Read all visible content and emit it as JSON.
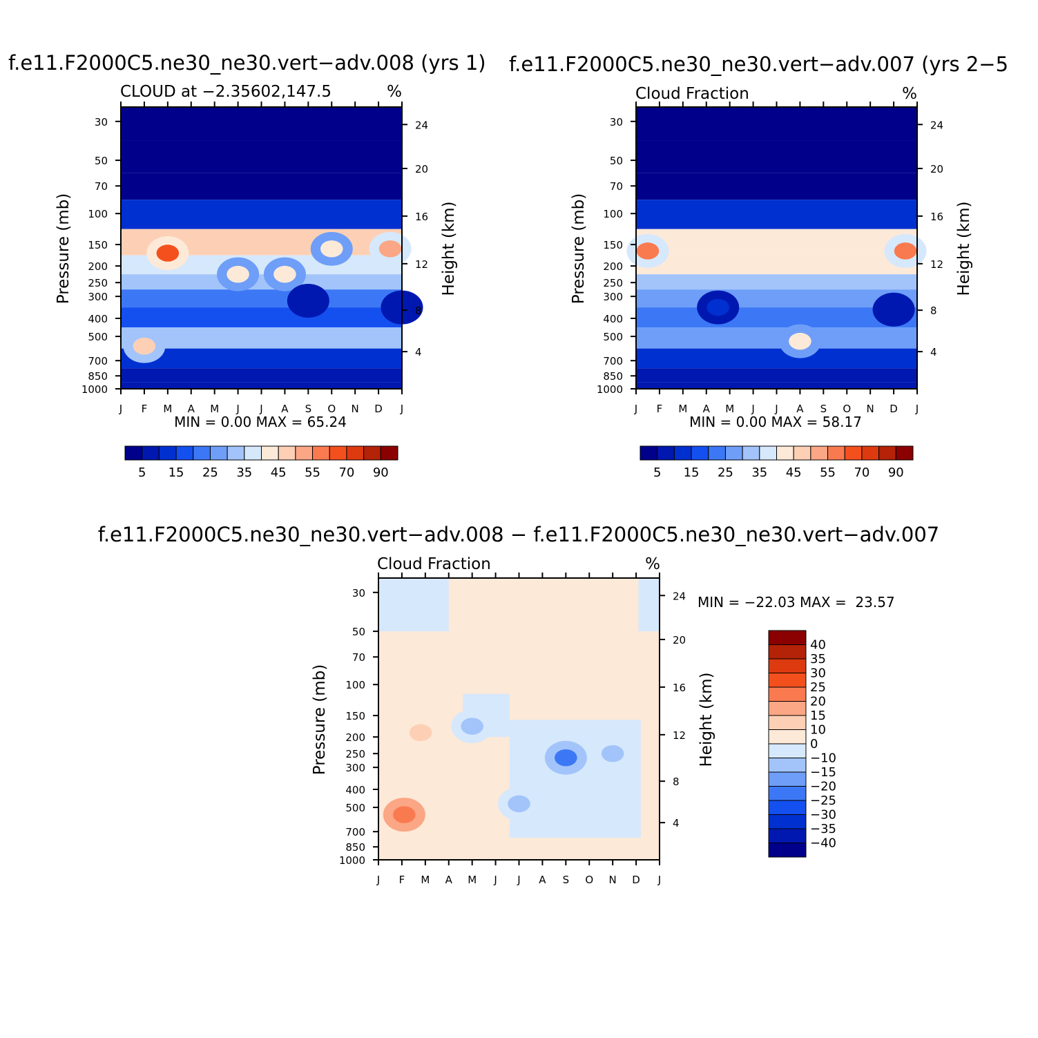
{
  "chart_data": [
    {
      "type": "heatmap",
      "panel": "top-left",
      "title": "f.e11.F2000C5.ne30_ne30.vert−adv.008 (yrs 1)",
      "subtitle_left": "CLOUD at −2.35602,147.5",
      "subtitle_right": "%",
      "xlabel": "",
      "ylabel": "Pressure (mb)",
      "ylabel_right": "Height (km)",
      "months": [
        "J",
        "F",
        "M",
        "A",
        "M",
        "J",
        "J",
        "A",
        "S",
        "O",
        "N",
        "D",
        "J"
      ],
      "pressure_ticks": [
        "30",
        "50",
        "70",
        "100",
        "150",
        "200",
        "250",
        "300",
        "400",
        "500",
        "700",
        "850",
        "1000"
      ],
      "height_ticks": [
        "24",
        "20",
        "16",
        "12",
        "8",
        "4"
      ],
      "stats": "MIN = 0.00 MAX = 65.24",
      "min": 0.0,
      "max": 65.24,
      "colorbar_labels": [
        "5",
        "15",
        "25",
        "35",
        "45",
        "55",
        "70",
        "90"
      ],
      "colors": [
        "#00008b",
        "#0018b0",
        "#0030d0",
        "#1450f0",
        "#3c78f5",
        "#6e9ef8",
        "#a2c4fa",
        "#d6e8fc",
        "#fde9d8",
        "#fdd0b5",
        "#fba684",
        "#fa7a50",
        "#f4501e",
        "#dd3a10",
        "#b42208",
        "#8b0000"
      ],
      "profile_rows": [
        0,
        0,
        0,
        10,
        45,
        38,
        30,
        22,
        18,
        30,
        12,
        8,
        6
      ],
      "features": [
        {
          "month": 2,
          "level": 4.4,
          "value": 62
        },
        {
          "month": 11.5,
          "level": 4.2,
          "value": 50
        },
        {
          "month": 1,
          "level": 9.4,
          "value": 48
        },
        {
          "month": 5,
          "level": 5.5,
          "value": 42
        },
        {
          "month": 7,
          "level": 5.5,
          "value": 42
        },
        {
          "month": 9,
          "level": 4.2,
          "value": 42
        },
        {
          "month": 8,
          "level": 7.2,
          "value": 8
        },
        {
          "month": 12,
          "level": 7.5,
          "value": 8
        }
      ]
    },
    {
      "type": "heatmap",
      "panel": "top-right",
      "title": "f.e11.F2000C5.ne30_ne30.vert−adv.007 (yrs 2−5",
      "subtitle_left": "Cloud Fraction",
      "subtitle_right": "%",
      "xlabel": "",
      "ylabel": "Pressure (mb)",
      "ylabel_right": "Height (km)",
      "months": [
        "J",
        "F",
        "M",
        "A",
        "M",
        "J",
        "J",
        "A",
        "S",
        "O",
        "N",
        "D",
        "J"
      ],
      "pressure_ticks": [
        "30",
        "50",
        "70",
        "100",
        "150",
        "200",
        "250",
        "300",
        "400",
        "500",
        "700",
        "850",
        "1000"
      ],
      "height_ticks": [
        "24",
        "20",
        "16",
        "12",
        "8",
        "4"
      ],
      "stats": "MIN = 0.00 MAX = 58.17",
      "min": 0.0,
      "max": 58.17,
      "colorbar_labels": [
        "5",
        "15",
        "25",
        "35",
        "45",
        "55",
        "70",
        "90"
      ],
      "colors": [
        "#00008b",
        "#0018b0",
        "#0030d0",
        "#1450f0",
        "#3c78f5",
        "#6e9ef8",
        "#a2c4fa",
        "#d6e8fc",
        "#fde9d8",
        "#fdd0b5",
        "#fba684",
        "#fa7a50",
        "#f4501e",
        "#dd3a10",
        "#b42208",
        "#8b0000"
      ],
      "profile_rows": [
        0,
        0,
        0,
        12,
        42,
        40,
        32,
        25,
        20,
        28,
        14,
        8,
        6
      ],
      "features": [
        {
          "month": 0.5,
          "level": 4.3,
          "value": 56
        },
        {
          "month": 11.5,
          "level": 4.3,
          "value": 55
        },
        {
          "month": 3.5,
          "level": 7.5,
          "value": 10
        },
        {
          "month": 11,
          "level": 7.6,
          "value": 8
        },
        {
          "month": 7,
          "level": 9.2,
          "value": 40
        }
      ]
    },
    {
      "type": "heatmap",
      "panel": "bottom-difference",
      "title": "f.e11.F2000C5.ne30_ne30.vert−adv.008 − f.e11.F2000C5.ne30_ne30.vert−adv.007",
      "subtitle_left": "Cloud Fraction",
      "subtitle_right": "%",
      "xlabel": "",
      "ylabel": "Pressure (mb)",
      "ylabel_right": "Height (km)",
      "months": [
        "J",
        "F",
        "M",
        "A",
        "M",
        "J",
        "J",
        "A",
        "S",
        "O",
        "N",
        "D",
        "J"
      ],
      "pressure_ticks": [
        "30",
        "50",
        "70",
        "100",
        "150",
        "200",
        "250",
        "300",
        "400",
        "500",
        "700",
        "850",
        "1000"
      ],
      "height_ticks": [
        "24",
        "20",
        "16",
        "12",
        "8",
        "4"
      ],
      "stats": "MIN = −22.03 MAX =  23.57",
      "min": -22.03,
      "max": 23.57,
      "colorbar_labels": [
        "40",
        "35",
        "30",
        "25",
        "20",
        "15",
        "10",
        "0",
        "−10",
        "−15",
        "−20",
        "−25",
        "−30",
        "−35",
        "−40"
      ],
      "colors": [
        "#8b0000",
        "#b42208",
        "#dd3a10",
        "#f4501e",
        "#fa7a50",
        "#fba684",
        "#fdd0b5",
        "#fde9d8",
        "#d6e8fc",
        "#a2c4fa",
        "#6e9ef8",
        "#3c78f5",
        "#1450f0",
        "#0030d0",
        "#0018b0",
        "#00008b"
      ],
      "features": [
        {
          "month": 1.1,
          "level": 9.3,
          "value": 23
        },
        {
          "month": 1.8,
          "level": 4.8,
          "value": 12
        },
        {
          "month": 8,
          "level": 6.3,
          "value": -21
        },
        {
          "month": 10,
          "level": 6.0,
          "value": -14
        },
        {
          "month": 4,
          "level": 4.5,
          "value": -14
        },
        {
          "month": 6,
          "level": 8.8,
          "value": -12
        }
      ]
    }
  ]
}
